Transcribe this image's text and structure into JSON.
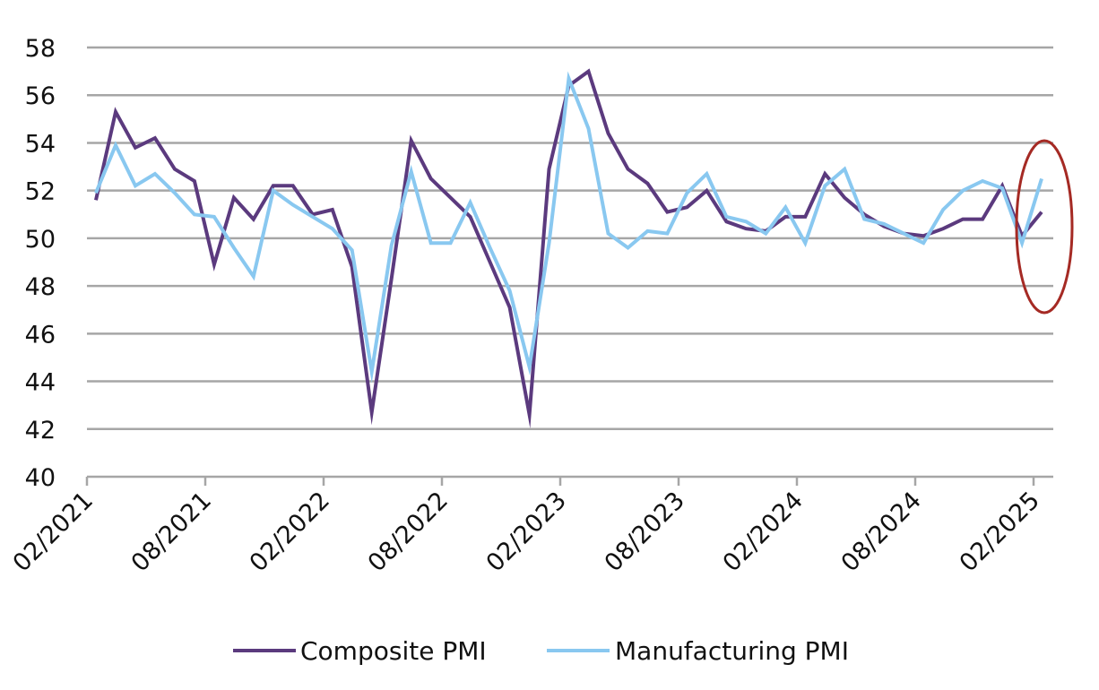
{
  "chart_data": {
    "type": "line",
    "title": "",
    "xlabel": "",
    "ylabel": "",
    "ylim": [
      40,
      58
    ],
    "yticks": [
      40,
      42,
      44,
      46,
      48,
      50,
      52,
      54,
      56,
      58
    ],
    "grid": true,
    "legend_position": "bottom",
    "x_tick_labels": [
      "02/2021",
      "08/2021",
      "02/2022",
      "08/2022",
      "02/2023",
      "08/2023",
      "02/2024",
      "08/2024",
      "02/2025"
    ],
    "x": [
      "02/2021",
      "03/2021",
      "04/2021",
      "05/2021",
      "06/2021",
      "07/2021",
      "08/2021",
      "09/2021",
      "10/2021",
      "11/2021",
      "12/2021",
      "01/2022",
      "02/2022",
      "03/2022",
      "04/2022",
      "05/2022",
      "06/2022",
      "07/2022",
      "08/2022",
      "09/2022",
      "10/2022",
      "11/2022",
      "12/2022",
      "01/2023",
      "02/2023",
      "03/2023",
      "04/2023",
      "05/2023",
      "06/2023",
      "07/2023",
      "08/2023",
      "09/2023",
      "10/2023",
      "11/2023",
      "12/2023",
      "01/2024",
      "02/2024",
      "03/2024",
      "04/2024",
      "05/2024",
      "06/2024",
      "07/2024",
      "08/2024",
      "09/2024",
      "10/2024",
      "11/2024",
      "12/2024",
      "01/2025",
      "02/2025"
    ],
    "series": [
      {
        "name": "Composite PMI",
        "color": "#5b3a7e",
        "values": [
          51.6,
          55.3,
          53.8,
          54.2,
          52.9,
          52.4,
          48.9,
          51.7,
          50.8,
          52.2,
          52.2,
          51.0,
          51.2,
          48.8,
          42.7,
          48.3,
          54.1,
          52.5,
          51.7,
          50.9,
          49.0,
          47.1,
          42.6,
          52.9,
          56.4,
          57.0,
          54.4,
          52.9,
          52.3,
          51.1,
          51.3,
          52.0,
          50.7,
          50.4,
          50.3,
          50.9,
          50.9,
          52.7,
          51.7,
          51.0,
          50.5,
          50.2,
          50.1,
          50.4,
          50.8,
          50.8,
          52.2,
          50.1,
          51.1
        ]
      },
      {
        "name": "Manufacturing PMI",
        "color": "#89c8f0",
        "values": [
          51.9,
          53.9,
          52.2,
          52.7,
          51.9,
          51.0,
          50.9,
          49.6,
          48.4,
          52.0,
          51.4,
          50.9,
          50.4,
          49.5,
          44.4,
          49.7,
          52.8,
          49.8,
          49.8,
          51.5,
          49.6,
          47.8,
          44.6,
          49.8,
          56.7,
          54.6,
          50.2,
          49.6,
          50.3,
          50.2,
          51.9,
          52.7,
          50.9,
          50.7,
          50.2,
          51.3,
          49.8,
          52.2,
          52.9,
          50.8,
          50.6,
          50.2,
          49.8,
          51.2,
          52.0,
          52.4,
          52.1,
          49.8,
          52.5
        ]
      }
    ],
    "annotation": {
      "shape": "ellipse",
      "color": "#a52a24",
      "around": "02/2025"
    }
  }
}
